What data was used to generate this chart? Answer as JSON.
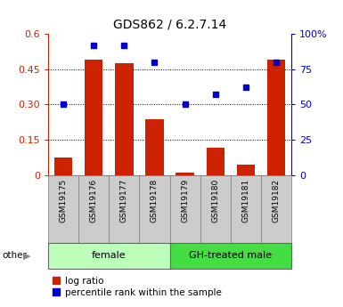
{
  "title": "GDS862 / 6.2.7.14",
  "samples": [
    "GSM19175",
    "GSM19176",
    "GSM19177",
    "GSM19178",
    "GSM19179",
    "GSM19180",
    "GSM19181",
    "GSM19182"
  ],
  "log_ratio": [
    0.075,
    0.49,
    0.475,
    0.235,
    0.01,
    0.115,
    0.045,
    0.49
  ],
  "percentile_rank": [
    50,
    92,
    92,
    80,
    50,
    57,
    62,
    80
  ],
  "groups": [
    {
      "label": "female",
      "start": 0,
      "end": 4,
      "color": "#bbffbb"
    },
    {
      "label": "GH-treated male",
      "start": 4,
      "end": 8,
      "color": "#44dd44"
    }
  ],
  "bar_color": "#cc2200",
  "dot_color": "#0000cc",
  "ylim_left": [
    0,
    0.6
  ],
  "ylim_right": [
    0,
    100
  ],
  "yticks_left": [
    0,
    0.15,
    0.3,
    0.45,
    0.6
  ],
  "ytick_labels_left": [
    "0",
    "0.15",
    "0.30",
    "0.45",
    "0.6"
  ],
  "yticks_right": [
    0,
    25,
    50,
    75,
    100
  ],
  "ytick_labels_right": [
    "0",
    "25",
    "50",
    "75",
    "100%"
  ],
  "hlines": [
    0.15,
    0.3,
    0.45
  ],
  "left_axis_color": "#cc2200",
  "right_axis_color": "#0000cc",
  "legend_log_ratio": "log ratio",
  "legend_percentile": "percentile rank within the sample",
  "other_label": "other",
  "tick_label_size": 7.0,
  "bar_width": 0.6,
  "xtick_box_color": "#cccccc",
  "marker_size": 5
}
